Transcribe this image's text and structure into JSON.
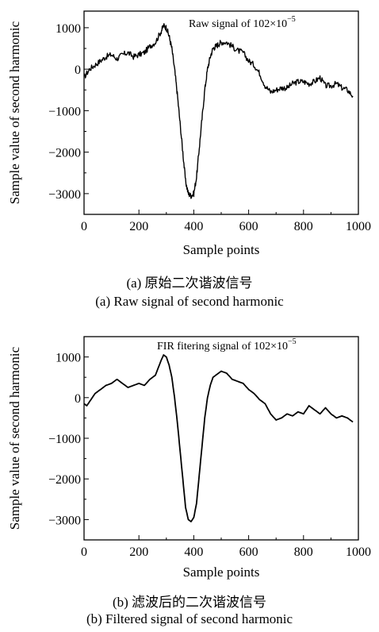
{
  "chart_data": [
    {
      "type": "line",
      "annotation_prefix": "Raw signal of 102×10",
      "annotation_exponent": "−5",
      "xlabel": "Sample points",
      "ylabel": "Sample value of second harmonic",
      "xlim": [
        0,
        1000
      ],
      "ylim": [
        -3500,
        1400
      ],
      "xticks": [
        "0",
        "200",
        "400",
        "600",
        "800",
        "1000"
      ],
      "yticks": [
        "1000",
        "0",
        "−1000",
        "−2000",
        "−3000"
      ],
      "ytick_values": [
        1000,
        0,
        -1000,
        -2000,
        -3000
      ],
      "xtick_values": [
        0,
        200,
        400,
        600,
        800,
        1000
      ],
      "caption_zh": "(a) 原始二次谐波信号",
      "caption_en": "(a) Raw signal of second harmonic",
      "noise": 70,
      "series": [
        {
          "x": [
            0,
            20,
            40,
            60,
            80,
            100,
            120,
            140,
            160,
            180,
            200,
            220,
            240,
            260,
            280,
            290,
            300,
            310,
            320,
            330,
            340,
            350,
            360,
            370,
            380,
            390,
            400,
            410,
            420,
            430,
            440,
            450,
            460,
            470,
            480,
            490,
            500,
            520,
            540,
            560,
            580,
            600,
            620,
            640,
            660,
            680,
            700,
            720,
            740,
            760,
            780,
            800,
            820,
            840,
            860,
            880,
            900,
            920,
            940,
            960,
            980
          ],
          "values": [
            -200,
            0,
            100,
            200,
            300,
            350,
            250,
            350,
            400,
            300,
            350,
            400,
            550,
            650,
            900,
            1050,
            1000,
            800,
            500,
            0,
            -600,
            -1300,
            -2000,
            -2700,
            -3000,
            -3050,
            -3000,
            -2600,
            -1900,
            -1200,
            -500,
            0,
            300,
            500,
            550,
            600,
            650,
            650,
            550,
            450,
            400,
            200,
            100,
            -100,
            -400,
            -550,
            -500,
            -450,
            -450,
            -350,
            -300,
            -300,
            -350,
            -300,
            -200,
            -400,
            -400,
            -350,
            -450,
            -500,
            -650
          ]
        }
      ]
    },
    {
      "type": "line",
      "annotation_prefix": "FIR fitering signal of 102×10",
      "annotation_exponent": "−5",
      "xlabel": "Sample points",
      "ylabel": "Sample value of second harmonic",
      "xlim": [
        0,
        1000
      ],
      "ylim": [
        -3500,
        1500
      ],
      "xticks": [
        "0",
        "200",
        "400",
        "600",
        "800",
        "1000"
      ],
      "yticks": [
        "1000",
        "0",
        "−1000",
        "−2000",
        "−3000"
      ],
      "ytick_values": [
        1000,
        0,
        -1000,
        -2000,
        -3000
      ],
      "xtick_values": [
        0,
        200,
        400,
        600,
        800,
        1000
      ],
      "caption_zh": "(b) 滤波后的二次谐波信号",
      "caption_en": "(b) Filtered signal of second harmonic",
      "noise": 0,
      "series": [
        {
          "x": [
            0,
            10,
            20,
            40,
            60,
            80,
            100,
            120,
            140,
            160,
            180,
            200,
            220,
            240,
            260,
            280,
            290,
            300,
            310,
            320,
            330,
            340,
            350,
            360,
            370,
            380,
            390,
            400,
            410,
            420,
            430,
            440,
            450,
            460,
            470,
            480,
            490,
            500,
            520,
            540,
            560,
            580,
            600,
            620,
            640,
            660,
            680,
            700,
            720,
            740,
            760,
            780,
            800,
            820,
            840,
            860,
            880,
            900,
            920,
            940,
            960,
            980
          ],
          "values": [
            -150,
            -200,
            -100,
            100,
            200,
            300,
            350,
            450,
            350,
            250,
            300,
            350,
            300,
            450,
            550,
            900,
            1050,
            1000,
            800,
            500,
            0,
            -600,
            -1300,
            -2000,
            -2700,
            -3000,
            -3050,
            -2950,
            -2600,
            -1900,
            -1200,
            -500,
            0,
            300,
            500,
            550,
            600,
            650,
            600,
            450,
            400,
            350,
            200,
            100,
            -50,
            -150,
            -400,
            -550,
            -500,
            -400,
            -450,
            -350,
            -400,
            -200,
            -300,
            -400,
            -250,
            -400,
            -500,
            -450,
            -500,
            -600
          ]
        }
      ]
    }
  ]
}
